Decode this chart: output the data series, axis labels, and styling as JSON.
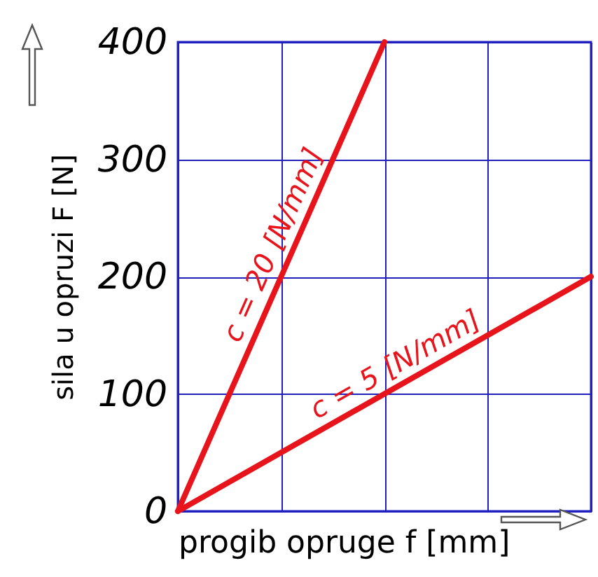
{
  "chart_data": {
    "type": "line",
    "xlabel": "progib opruge f [mm]",
    "ylabel": "sila u opruzi F [N]",
    "categories": [
      null,
      null,
      null,
      null,
      null
    ],
    "series": [
      {
        "name": "c = 20 [N/mm]",
        "color": "#e8141c",
        "values": [
          0,
          200,
          400,
          null,
          null
        ]
      },
      {
        "name": "c = 5 [N/mm]",
        "color": "#e8141c",
        "values": [
          0,
          50,
          100,
          150,
          200
        ]
      }
    ],
    "ylim": [
      0,
      400
    ],
    "yticks": [
      0,
      100,
      200,
      300,
      400
    ],
    "grid": true,
    "tick_labels": "y",
    "legend": false,
    "marker": "none",
    "line_style": "solid"
  }
}
